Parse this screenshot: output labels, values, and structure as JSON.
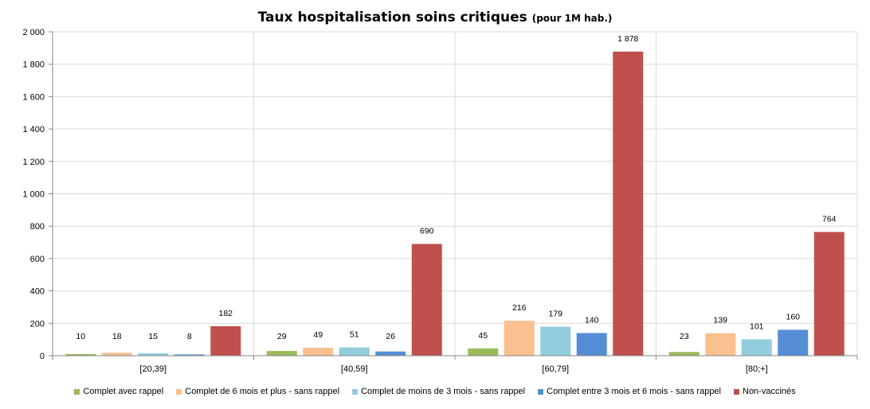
{
  "chart_data": {
    "type": "bar",
    "title": "Taux hospitalisation  soins critiques",
    "subtitle": "(pour 1M hab.)",
    "xlabel": "",
    "ylabel": "",
    "ylim": [
      0,
      2000
    ],
    "ytick_step": 200,
    "ytick_labels": [
      "0",
      "200",
      "400",
      "600",
      "800",
      "1 000",
      "1 200",
      "1 400",
      "1 600",
      "1 800",
      "2 000"
    ],
    "grid": true,
    "legend_position": "bottom",
    "categories": [
      "[20,39]",
      "[40,59]",
      "[60,79]",
      "[80;+]"
    ],
    "series": [
      {
        "name": "Complet avec rappel",
        "color": "#9bbb59",
        "values": [
          10,
          29,
          45,
          23
        ],
        "labels": [
          "10",
          "29",
          "45",
          "23"
        ]
      },
      {
        "name": "Complet de 6 mois et plus - sans rappel",
        "color": "#fac090",
        "values": [
          18,
          49,
          216,
          139
        ],
        "labels": [
          "18",
          "49",
          "216",
          "139"
        ]
      },
      {
        "name": "Complet de moins de 3 mois - sans rappel",
        "color": "#93cddd",
        "values": [
          15,
          51,
          179,
          101
        ],
        "labels": [
          "15",
          "51",
          "179",
          "101"
        ]
      },
      {
        "name": "Complet entre 3 mois et 6 mois - sans rappel",
        "color": "#558ed5",
        "values": [
          8,
          26,
          140,
          160
        ],
        "labels": [
          "8",
          "26",
          "140",
          "160"
        ]
      },
      {
        "name": "Non-vaccinés",
        "color": "#c0504d",
        "values": [
          182,
          690,
          1878,
          764
        ],
        "labels": [
          "182",
          "690",
          "1 878",
          "764"
        ]
      }
    ]
  }
}
